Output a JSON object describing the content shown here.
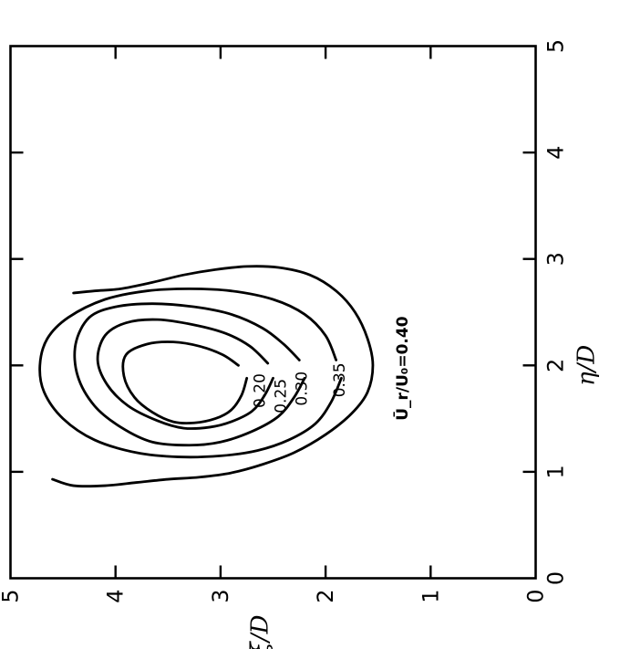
{
  "chart_data": {
    "type": "contour",
    "x_axis_label": "η/D",
    "y_axis_label": "ξ/D",
    "xlim": [
      0,
      5
    ],
    "ylim": [
      0,
      5
    ],
    "x_ticks": [
      "0",
      "1",
      "2",
      "3",
      "4",
      "5"
    ],
    "y_ticks": [
      "0",
      "1",
      "2",
      "3",
      "4",
      "5"
    ],
    "grid": false,
    "contour_label_prefix": "Ū_r/U₀",
    "contours": [
      {
        "label": "=0.40",
        "value": 0.4,
        "points": [
          [
            0.93,
            4.6
          ],
          [
            0.87,
            4.4
          ],
          [
            0.87,
            4.1
          ],
          [
            0.9,
            3.8
          ],
          [
            0.93,
            3.5
          ],
          [
            0.95,
            3.2
          ],
          [
            0.99,
            2.9
          ],
          [
            1.07,
            2.6
          ],
          [
            1.18,
            2.3
          ],
          [
            1.35,
            2.0
          ],
          [
            1.55,
            1.75
          ],
          [
            1.75,
            1.6
          ],
          [
            2.0,
            1.55
          ],
          [
            2.25,
            1.6
          ],
          [
            2.5,
            1.72
          ],
          [
            2.7,
            1.9
          ],
          [
            2.85,
            2.15
          ],
          [
            2.92,
            2.45
          ],
          [
            2.93,
            2.75
          ],
          [
            2.9,
            3.05
          ],
          [
            2.85,
            3.35
          ],
          [
            2.78,
            3.65
          ],
          [
            2.72,
            3.95
          ],
          [
            2.7,
            4.2
          ],
          [
            2.68,
            4.4
          ]
        ]
      },
      {
        "label": "0.35",
        "value": 0.35,
        "points": [
          [
            1.88,
            1.85
          ],
          [
            1.65,
            1.95
          ],
          [
            1.45,
            2.1
          ],
          [
            1.3,
            2.35
          ],
          [
            1.2,
            2.65
          ],
          [
            1.15,
            3.0
          ],
          [
            1.14,
            3.4
          ],
          [
            1.18,
            3.8
          ],
          [
            1.3,
            4.2
          ],
          [
            1.5,
            4.5
          ],
          [
            1.75,
            4.68
          ],
          [
            2.0,
            4.72
          ],
          [
            2.25,
            4.65
          ],
          [
            2.45,
            4.45
          ],
          [
            2.62,
            4.1
          ],
          [
            2.7,
            3.7
          ],
          [
            2.72,
            3.3
          ],
          [
            2.7,
            2.9
          ],
          [
            2.62,
            2.5
          ],
          [
            2.48,
            2.2
          ],
          [
            2.28,
            2.0
          ],
          [
            2.05,
            1.9
          ]
        ]
      },
      {
        "label": "0.30",
        "value": 0.3,
        "points": [
          [
            1.88,
            2.2
          ],
          [
            1.7,
            2.3
          ],
          [
            1.52,
            2.45
          ],
          [
            1.38,
            2.7
          ],
          [
            1.28,
            3.0
          ],
          [
            1.25,
            3.3
          ],
          [
            1.28,
            3.65
          ],
          [
            1.42,
            3.95
          ],
          [
            1.62,
            4.2
          ],
          [
            1.9,
            4.36
          ],
          [
            2.2,
            4.38
          ],
          [
            2.45,
            4.25
          ],
          [
            2.55,
            4.0
          ],
          [
            2.58,
            3.65
          ],
          [
            2.55,
            3.25
          ],
          [
            2.48,
            2.9
          ],
          [
            2.35,
            2.6
          ],
          [
            2.2,
            2.4
          ],
          [
            2.05,
            2.25
          ]
        ]
      },
      {
        "label": "0.25",
        "value": 0.25,
        "points": [
          [
            1.88,
            2.5
          ],
          [
            1.72,
            2.58
          ],
          [
            1.57,
            2.7
          ],
          [
            1.47,
            2.9
          ],
          [
            1.42,
            3.1
          ],
          [
            1.41,
            3.35
          ],
          [
            1.48,
            3.6
          ],
          [
            1.62,
            3.88
          ],
          [
            1.82,
            4.08
          ],
          [
            2.05,
            4.17
          ],
          [
            2.28,
            4.1
          ],
          [
            2.4,
            3.9
          ],
          [
            2.43,
            3.6
          ],
          [
            2.38,
            3.25
          ],
          [
            2.3,
            2.95
          ],
          [
            2.18,
            2.72
          ],
          [
            2.02,
            2.55
          ]
        ]
      },
      {
        "label": "0.20",
        "value": 0.2,
        "points": [
          [
            1.88,
            2.75
          ],
          [
            1.72,
            2.8
          ],
          [
            1.58,
            2.9
          ],
          [
            1.5,
            3.05
          ],
          [
            1.46,
            3.25
          ],
          [
            1.47,
            3.45
          ],
          [
            1.56,
            3.65
          ],
          [
            1.7,
            3.82
          ],
          [
            1.9,
            3.92
          ],
          [
            2.1,
            3.9
          ],
          [
            2.2,
            3.7
          ],
          [
            2.22,
            3.45
          ],
          [
            2.18,
            3.2
          ],
          [
            2.1,
            2.98
          ],
          [
            2.0,
            2.83
          ]
        ]
      }
    ]
  }
}
